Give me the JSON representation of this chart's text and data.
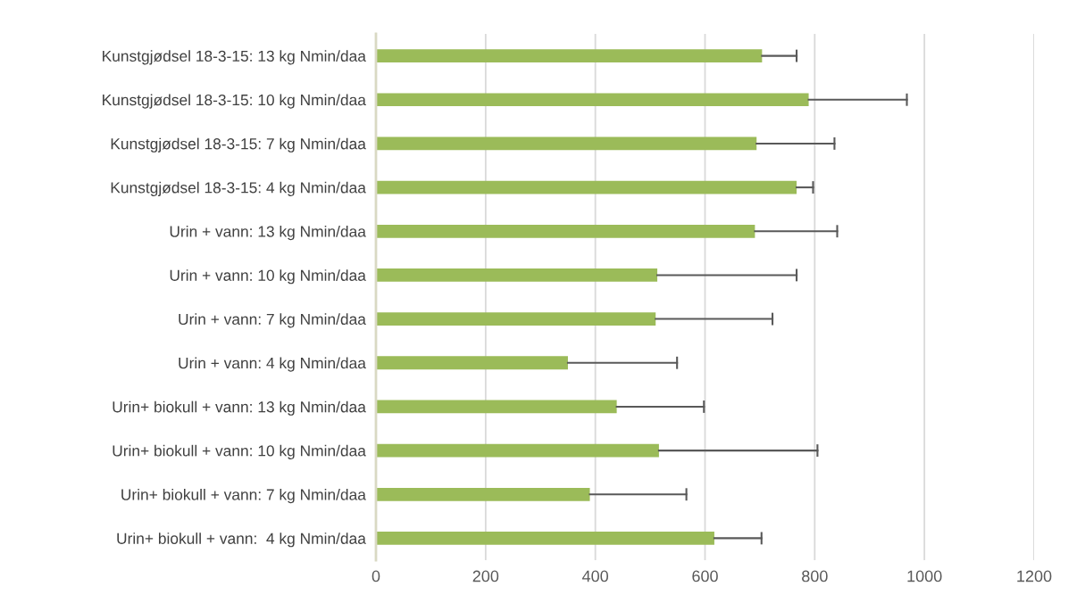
{
  "chart_data": {
    "type": "bar",
    "orientation": "horizontal",
    "categories": [
      "Kunstgjødsel 18-3-15: 13 kg Nmin/daa",
      "Kunstgjødsel 18-3-15: 10 kg Nmin/daa",
      "Kunstgjødsel 18-3-15: 7 kg Nmin/daa",
      "Kunstgjødsel 18-3-15: 4 kg Nmin/daa",
      "Urin + vann: 13 kg Nmin/daa",
      "Urin + vann: 10 kg Nmin/daa",
      "Urin + vann: 7 kg Nmin/daa",
      "Urin + vann: 4 kg Nmin/daa",
      "Urin+ biokull + vann: 13 kg Nmin/daa",
      "Urin+ biokull + vann: 10 kg Nmin/daa",
      "Urin+ biokull + vann: 7 kg Nmin/daa",
      "Urin+ biokull + vann:  4 kg Nmin/daa"
    ],
    "series": [
      {
        "color": "#9bbb59",
        "values": [
          704,
          789,
          694,
          767,
          691,
          513,
          510,
          350,
          439,
          516,
          390,
          617
        ],
        "errors": [
          [
            704,
            767
          ],
          [
            789,
            968
          ],
          [
            694,
            836
          ],
          [
            767,
            797
          ],
          [
            691,
            841
          ],
          [
            513,
            767
          ],
          [
            510,
            723
          ],
          [
            350,
            549
          ],
          [
            439,
            598
          ],
          [
            516,
            805
          ],
          [
            390,
            566
          ],
          [
            617,
            703
          ]
        ]
      }
    ],
    "xlim": [
      0,
      1200
    ],
    "xticks": [
      0,
      200,
      400,
      600,
      800,
      1000,
      1200
    ],
    "grid": "x"
  }
}
